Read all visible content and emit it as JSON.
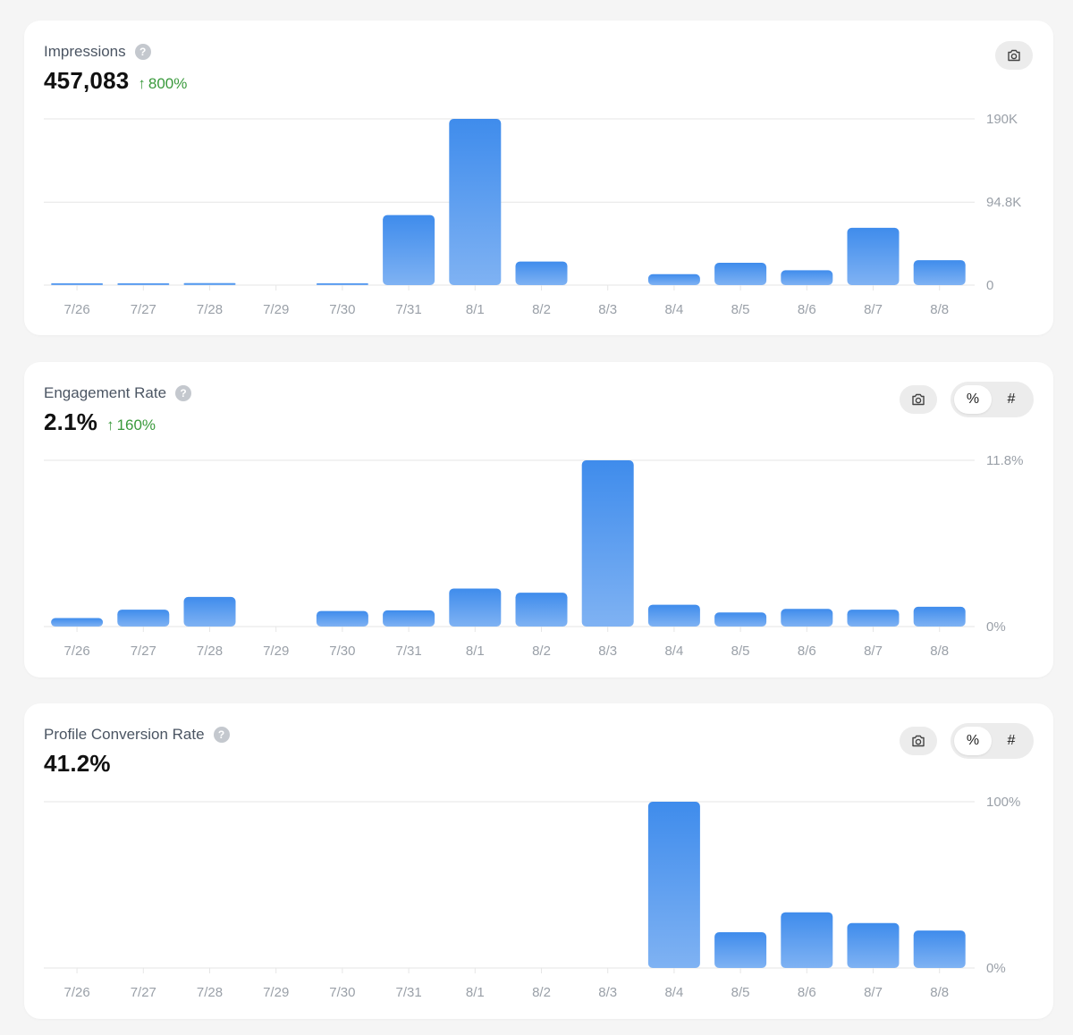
{
  "colors": {
    "bar_top": "#3f8cec",
    "bar_bottom": "#7fb2f3",
    "positive_change": "#3a9a3c",
    "grid": "#e6e6e6",
    "tick_text": "#9aa0a8"
  },
  "icons": {
    "help": "question-circle-icon",
    "camera": "camera-icon",
    "arrow_up": "arrow-up-icon"
  },
  "cards": {
    "impressions": {
      "title": "Impressions",
      "help": "?",
      "value": "457,083",
      "change_arrow": "↑",
      "change": "800%"
    },
    "engagement": {
      "title": "Engagement Rate",
      "help": "?",
      "value": "2.1%",
      "change_arrow": "↑",
      "change": "160%",
      "toggle": {
        "percent_label": "%",
        "count_label": "#",
        "selected": "%"
      }
    },
    "conversion": {
      "title": "Profile Conversion Rate",
      "help": "?",
      "value": "41.2%",
      "toggle": {
        "percent_label": "%",
        "count_label": "#",
        "selected": "%"
      }
    }
  },
  "chart_data": [
    {
      "type": "bar",
      "categories": [
        "7/26",
        "7/27",
        "7/28",
        "7/29",
        "7/30",
        "7/31",
        "8/1",
        "8/2",
        "8/3",
        "8/4",
        "8/5",
        "8/6",
        "8/7",
        "8/8"
      ],
      "values": [
        700,
        2000,
        2300,
        0,
        1200,
        80000,
        190000,
        27000,
        0,
        12500,
        25500,
        17000,
        65500,
        28500
      ],
      "ylim": [
        0,
        190000
      ],
      "yticks": [
        {
          "value": 0,
          "label": "0"
        },
        {
          "value": 94800,
          "label": "94.8K"
        },
        {
          "value": 190000,
          "label": "190K"
        }
      ],
      "grid": true,
      "axis_side": "right"
    },
    {
      "type": "bar",
      "categories": [
        "7/26",
        "7/27",
        "7/28",
        "7/29",
        "7/30",
        "7/31",
        "8/1",
        "8/2",
        "8/3",
        "8/4",
        "8/5",
        "8/6",
        "8/7",
        "8/8"
      ],
      "values": [
        0.6,
        1.2,
        2.1,
        0,
        1.1,
        1.15,
        2.7,
        2.4,
        11.8,
        1.55,
        1.0,
        1.25,
        1.2,
        1.4
      ],
      "ylim": [
        0,
        11.8
      ],
      "yticks": [
        {
          "value": 0,
          "label": "0%"
        },
        {
          "value": 11.8,
          "label": "11.8%"
        }
      ],
      "grid": true,
      "axis_side": "right"
    },
    {
      "type": "bar",
      "categories": [
        "7/26",
        "7/27",
        "7/28",
        "7/29",
        "7/30",
        "7/31",
        "8/1",
        "8/2",
        "8/3",
        "8/4",
        "8/5",
        "8/6",
        "8/7",
        "8/8"
      ],
      "values": [
        0,
        0,
        0,
        0,
        0,
        0,
        0,
        0,
        0,
        100,
        21.5,
        33.5,
        27,
        22.5
      ],
      "ylim": [
        0,
        100
      ],
      "yticks": [
        {
          "value": 0,
          "label": "0%"
        },
        {
          "value": 100,
          "label": "100%"
        }
      ],
      "grid": true,
      "axis_side": "right"
    }
  ]
}
